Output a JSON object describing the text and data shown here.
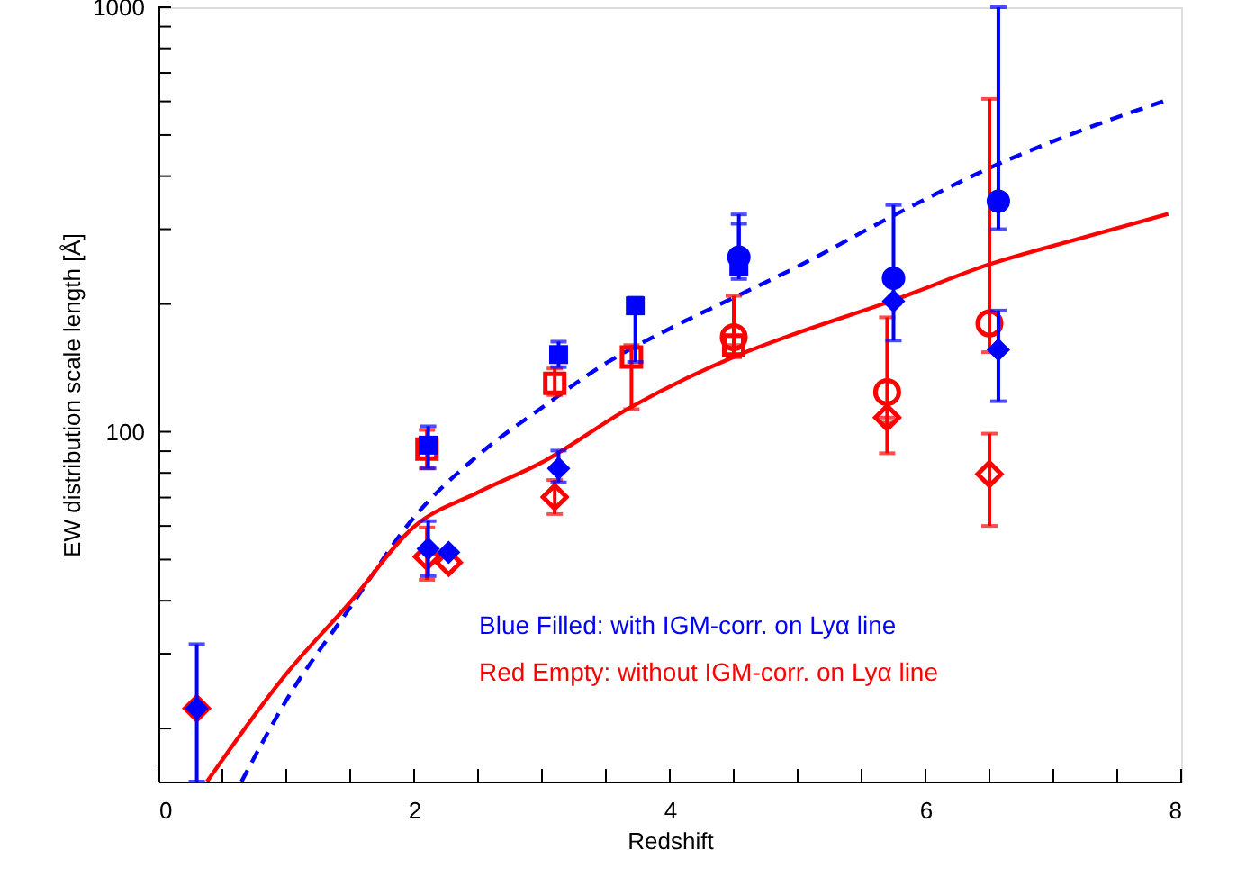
{
  "chart_data": {
    "type": "scatter",
    "xlabel": "Redshift",
    "ylabel": "EW distribution scale length [Å]",
    "log": "y",
    "grid": false,
    "legend": "bottom right",
    "xlim": [
      0,
      8
    ],
    "xticks": [
      0,
      {
        "value": 0.5,
        "label": null
      },
      {
        "value": 1,
        "label": null
      },
      {
        "value": 1.5,
        "label": null
      },
      2,
      {
        "value": 2.5,
        "label": null
      },
      {
        "value": 3,
        "label": null
      },
      {
        "value": 3.5,
        "label": null
      },
      4,
      {
        "value": 4.5,
        "label": null
      },
      {
        "value": 5,
        "label": null
      },
      {
        "value": 5.5,
        "label": null
      },
      6,
      {
        "value": 6.5,
        "label": null
      },
      {
        "value": 7,
        "label": null
      },
      {
        "value": 7.5,
        "label": null
      },
      8
    ],
    "ylim": [
      15,
      1000
    ],
    "yticks": [
      {
        "value": 20,
        "label": null
      },
      {
        "value": 30,
        "label": null
      },
      {
        "value": 40,
        "label": null
      },
      {
        "value": 50,
        "label": null
      },
      {
        "value": 60,
        "label": null
      },
      {
        "value": 70,
        "label": null
      },
      {
        "value": 80,
        "label": null
      },
      {
        "value": 90,
        "label": null
      },
      100,
      {
        "value": 200,
        "label": null
      },
      {
        "value": 300,
        "label": null
      },
      {
        "value": 400,
        "label": null
      },
      {
        "value": 500,
        "label": null
      },
      {
        "value": 600,
        "label": null
      },
      {
        "value": 700,
        "label": null
      },
      {
        "value": 800,
        "label": null
      },
      {
        "value": 900,
        "label": null
      },
      1000
    ],
    "series": [
      {
        "name": "Blue Filled:  with IGM-corr. on Lyα line",
        "type": "line",
        "line_style": "dashed",
        "color": "#0000ff",
        "x": [
          0.65,
          1.0,
          1.5,
          2.0,
          2.5,
          3.0,
          3.5,
          4.0,
          4.5,
          5.0,
          5.75,
          6.5,
          7.2,
          7.9
        ],
        "values": [
          15,
          23.3,
          38.6,
          62.9,
          88,
          114,
          145,
          175,
          207,
          245,
          323,
          418,
          510,
          606
        ]
      },
      {
        "name": "Red Empty: without IGM-corr. on Lyα line",
        "type": "line",
        "line_style": "solid",
        "color": "#ff0000",
        "x": [
          0.38,
          1.0,
          1.5,
          2.0,
          2.5,
          3.0,
          3.69,
          4.5,
          5.0,
          5.75,
          6.5,
          7.2,
          7.9
        ],
        "values": [
          15,
          26.9,
          39.7,
          59.8,
          72,
          84.7,
          114,
          150,
          171,
          204,
          248,
          285,
          326
        ]
      },
      {
        "type": "scatter",
        "marker": "square",
        "color": "#ff0000",
        "x": [
          2.1,
          3.1,
          3.7,
          4.5
        ],
        "values": [
          91,
          130,
          150,
          160
        ],
        "errors": [
          [
            82,
            101
          ],
          [
            122,
            141
          ],
          [
            113,
            160
          ],
          [
            150,
            160
          ]
        ]
      },
      {
        "type": "scatter",
        "marker": "diamond",
        "color": "#ff0000",
        "x": [
          0.3,
          2.1,
          2.27,
          3.1,
          5.7,
          6.5
        ],
        "values": [
          22.3,
          50.8,
          49.2,
          70.2,
          108,
          79.5
        ],
        "errors": [
          null,
          [
            44.8,
            59.5
          ],
          null,
          [
            64,
            77
          ],
          [
            89,
            108
          ],
          [
            60,
            99
          ]
        ]
      },
      {
        "type": "scatter",
        "marker": "circle",
        "color": "#ff0000",
        "x": [
          4.5,
          5.7,
          6.5
        ],
        "values": [
          167,
          124,
          180
        ],
        "errors": [
          [
            150,
            209
          ],
          [
            105,
            186
          ],
          [
            154,
            608
          ]
        ]
      },
      {
        "type": "scatter",
        "marker": "square",
        "color": "#0000ff",
        "x": [
          2.11,
          3.13,
          3.73,
          4.54
        ],
        "values": [
          93,
          152,
          198,
          245
        ],
        "errors": [
          [
            82,
            103
          ],
          [
            142,
            163
          ],
          [
            146,
            207
          ],
          [
            229,
            309
          ]
        ]
      },
      {
        "type": "scatter",
        "marker": "diamond",
        "color": "#0000ff",
        "x": [
          0.3,
          2.11,
          2.27,
          3.13,
          5.75,
          6.57
        ],
        "values": [
          22.3,
          53,
          52,
          82,
          203,
          156
        ],
        "errors": [
          [
            15,
            31.6
          ],
          [
            45.7,
            61.6
          ],
          null,
          [
            76,
            90.3
          ],
          [
            164,
            203
          ],
          [
            118,
            193
          ]
        ]
      },
      {
        "type": "scatter",
        "marker": "circle",
        "color": "#0000ff",
        "x": [
          4.54,
          5.75,
          6.57
        ],
        "values": [
          258,
          230,
          349
        ],
        "errors": [
          [
            240,
            325
          ],
          [
            200,
            342
          ],
          [
            300,
            1000
          ]
        ]
      }
    ]
  }
}
